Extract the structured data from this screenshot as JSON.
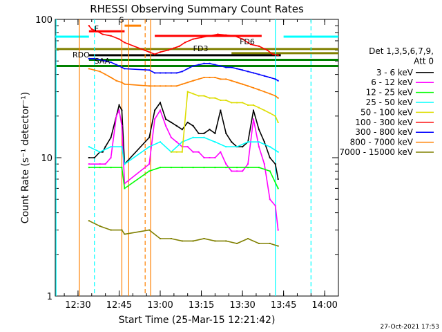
{
  "chart_data": {
    "type": "line",
    "title": "RHESSI Observing Summary Count Rates",
    "xlabel": "Start Time (25-Mar-15 12:21:42)",
    "ylabel": "Count Rate (s⁻¹ detector⁻¹)",
    "yscale": "log",
    "ylim": [
      1,
      100
    ],
    "xlim": [
      "12:21:42",
      "14:05:00"
    ],
    "x_ticks": [
      "12:30",
      "12:45",
      "13:00",
      "13:15",
      "13:30",
      "13:45",
      "14:00"
    ],
    "y_ticks": [
      "1",
      "10",
      "100"
    ],
    "grid": false,
    "legend_position": "right",
    "legend_header": [
      "Det 1,3,5,6,7,9,",
      "Att 0"
    ],
    "series": [
      {
        "name": "3 - 6 keV",
        "color": "#000000",
        "x": [
          "12:34",
          "12:36",
          "12:38",
          "12:39",
          "12:40",
          "12:42",
          "12:44",
          "12:45",
          "12:46",
          "12:47",
          "12:56",
          "12:58",
          "13:00",
          "13:02",
          "13:04",
          "13:06",
          "13:08",
          "13:10",
          "13:12",
          "13:14",
          "13:16",
          "13:18",
          "13:20",
          "13:22",
          "13:24",
          "13:26",
          "13:28",
          "13:30",
          "13:32",
          "13:34",
          "13:36",
          "13:38",
          "13:40",
          "13:42",
          "13:43"
        ],
        "y": [
          10,
          10,
          11,
          11,
          12,
          14,
          20,
          24,
          22,
          9,
          14,
          22,
          25,
          19,
          18,
          17,
          16,
          18,
          17,
          15,
          15,
          16,
          15,
          22,
          15,
          13,
          12,
          12,
          13,
          22,
          16,
          13,
          10,
          9,
          7
        ]
      },
      {
        "name": "6 - 12 keV",
        "color": "#ff00ff",
        "x": [
          "12:34",
          "12:38",
          "12:40",
          "12:42",
          "12:44",
          "12:45",
          "12:46",
          "12:47",
          "12:56",
          "12:58",
          "13:00",
          "13:02",
          "13:04",
          "13:06",
          "13:08",
          "13:10",
          "13:12",
          "13:14",
          "13:16",
          "13:18",
          "13:20",
          "13:22",
          "13:24",
          "13:26",
          "13:28",
          "13:30",
          "13:32",
          "13:34",
          "13:36",
          "13:38",
          "13:40",
          "13:42",
          "13:43"
        ],
        "y": [
          9,
          9,
          9,
          10,
          20,
          22,
          17,
          6.5,
          9,
          19,
          22,
          17,
          14,
          13,
          12,
          12,
          11,
          11,
          10,
          10,
          10,
          11,
          9,
          8,
          8,
          8,
          9,
          19,
          12,
          9,
          5,
          4.5,
          3
        ]
      },
      {
        "name": "12 - 25 keV",
        "color": "#00ff00",
        "x": [
          "12:34",
          "12:38",
          "12:42",
          "12:46",
          "12:47",
          "12:56",
          "13:00",
          "13:04",
          "13:08",
          "13:12",
          "13:16",
          "13:20",
          "13:24",
          "13:28",
          "13:32",
          "13:36",
          "13:40",
          "13:43"
        ],
        "y": [
          8.5,
          8.5,
          8.5,
          8.5,
          6,
          8,
          8.5,
          8.5,
          8.5,
          8.5,
          8.5,
          8.5,
          8.5,
          8.5,
          8.5,
          8.5,
          8,
          6
        ]
      },
      {
        "name": "25 - 50 keV",
        "color": "#00ffff",
        "x": [
          "12:34",
          "12:38",
          "12:42",
          "12:46",
          "12:47",
          "12:56",
          "13:00",
          "13:04",
          "13:08",
          "13:12",
          "13:16",
          "13:20",
          "13:24",
          "13:28",
          "13:32",
          "13:36",
          "13:40",
          "13:43"
        ],
        "y": [
          12,
          11,
          12,
          12,
          9,
          12,
          13,
          11,
          13,
          14,
          14,
          13,
          12,
          12,
          13,
          13,
          12,
          11
        ]
      },
      {
        "name": "50 - 100 keV",
        "color": "#dddd00",
        "x": [
          "13:04",
          "13:06",
          "13:08",
          "13:10",
          "13:12",
          "13:14",
          "13:16",
          "13:18",
          "13:20",
          "13:22",
          "13:24",
          "13:26",
          "13:28",
          "13:30",
          "13:32",
          "13:34",
          "13:36",
          "13:38",
          "13:40",
          "13:42",
          "13:43"
        ],
        "y": [
          11,
          11,
          11,
          30,
          29,
          28,
          28,
          27,
          27,
          26,
          26,
          25,
          25,
          25,
          24,
          24,
          23,
          22,
          21,
          20,
          18
        ]
      },
      {
        "name": "100 - 300 keV",
        "color": "#ff0000",
        "x": [
          "12:34",
          "12:35",
          "12:37",
          "12:39",
          "12:42",
          "12:45",
          "12:47",
          "12:56",
          "12:58",
          "13:00",
          "13:03",
          "13:05",
          "13:07",
          "13:09",
          "13:12",
          "13:15",
          "13:18",
          "13:21",
          "13:24",
          "13:27",
          "13:30",
          "13:33",
          "13:36",
          "13:39",
          "13:41",
          "13:43"
        ],
        "y": [
          90,
          85,
          82,
          78,
          76,
          72,
          68,
          58,
          56,
          58,
          60,
          62,
          64,
          68,
          72,
          74,
          76,
          78,
          77,
          76,
          72,
          66,
          64,
          60,
          56,
          55
        ]
      },
      {
        "name": "300 - 800 keV",
        "color": "#0000ff",
        "x": [
          "12:34",
          "12:36",
          "12:38",
          "12:40",
          "12:42",
          "12:44",
          "12:46",
          "12:47",
          "12:56",
          "12:58",
          "13:00",
          "13:02",
          "13:04",
          "13:06",
          "13:08",
          "13:10",
          "13:12",
          "13:14",
          "13:16",
          "13:18",
          "13:20",
          "13:22",
          "13:24",
          "13:26",
          "13:28",
          "13:30",
          "13:32",
          "13:34",
          "13:36",
          "13:38",
          "13:40",
          "13:42",
          "13:43"
        ],
        "y": [
          52,
          52,
          51,
          50,
          49,
          47,
          45,
          44,
          43,
          41,
          41,
          41,
          41,
          41,
          42,
          44,
          46,
          47,
          48,
          48,
          47,
          46,
          45,
          45,
          44,
          43,
          42,
          41,
          40,
          39,
          38,
          37,
          36
        ]
      },
      {
        "name": "800 - 7000 keV",
        "color": "#ff8000",
        "x": [
          "12:34",
          "12:36",
          "12:38",
          "12:40",
          "12:42",
          "12:44",
          "12:46",
          "12:47",
          "12:56",
          "12:58",
          "13:00",
          "13:02",
          "13:04",
          "13:06",
          "13:08",
          "13:10",
          "13:12",
          "13:14",
          "13:16",
          "13:18",
          "13:20",
          "13:22",
          "13:24",
          "13:26",
          "13:28",
          "13:30",
          "13:32",
          "13:34",
          "13:36",
          "13:38",
          "13:40",
          "13:42",
          "13:43"
        ],
        "y": [
          44,
          43,
          42,
          40,
          38,
          36,
          35,
          34,
          33,
          33,
          33,
          33,
          33,
          33,
          34,
          35,
          36,
          37,
          38,
          38,
          38,
          37,
          37,
          36,
          35,
          34,
          33,
          32,
          31,
          30,
          29,
          28,
          27
        ]
      },
      {
        "name": "7000 - 15000 keV",
        "color": "#808000",
        "x": [
          "12:34",
          "12:38",
          "12:42",
          "12:46",
          "12:47",
          "12:56",
          "13:00",
          "13:04",
          "13:08",
          "13:12",
          "13:16",
          "13:20",
          "13:24",
          "13:28",
          "13:32",
          "13:36",
          "13:40",
          "13:43"
        ],
        "y": [
          3.5,
          3.2,
          3,
          3,
          2.8,
          3,
          2.6,
          2.6,
          2.5,
          2.5,
          2.6,
          2.5,
          2.5,
          2.4,
          2.6,
          2.4,
          2.4,
          2.3
        ]
      }
    ],
    "flag_bars": [
      {
        "label": "S",
        "color": "#ff8000",
        "y": 90,
        "start": "12:47",
        "end": "12:53"
      },
      {
        "label": "F",
        "color": "#ff0000",
        "y": 82,
        "start": "12:34",
        "end": "12:47"
      },
      {
        "label": "",
        "color": "#ff0000",
        "y": 76,
        "start": "12:58",
        "end": "13:37"
      },
      {
        "label": "",
        "color": "#00ffff",
        "y": 75,
        "start": "12:21:42",
        "end": "12:34"
      },
      {
        "label": "",
        "color": "#00ffff",
        "y": 75,
        "start": "13:45",
        "end": "14:05"
      },
      {
        "label": "",
        "color": "#808000",
        "y": 61,
        "start": "12:21:42",
        "end": "14:05"
      },
      {
        "label": "FD3",
        "color": "#808000",
        "y": 57,
        "start": "13:26",
        "end": "14:05"
      },
      {
        "label": "",
        "color": "#000000",
        "y": 55,
        "start": "12:34",
        "end": "13:44"
      },
      {
        "label": "RDO",
        "color": "#008000",
        "y": 51,
        "start": "12:34",
        "end": "14:05"
      },
      {
        "label": "",
        "color": "#008000",
        "y": 46,
        "start": "12:21:42",
        "end": "14:05"
      }
    ],
    "flag_labels": [
      {
        "label": "RDO",
        "color": "#008000",
        "x": "12:28",
        "y": 53
      },
      {
        "label": "SAA",
        "color": "#008000",
        "x": "12:36",
        "y": 48
      },
      {
        "label": "S",
        "color": "#ff8000",
        "x": "12:45",
        "y": 95
      },
      {
        "label": "F",
        "color": "#ff0000",
        "x": "12:36",
        "y": 82
      },
      {
        "label": "FD3",
        "color": "#808000",
        "x": "13:12",
        "y": 59
      },
      {
        "label": "FD6",
        "color": "#808000",
        "x": "13:29",
        "y": 66
      }
    ],
    "vertical_lines": [
      {
        "x": "12:30:30",
        "color": "#ff8000",
        "style": "solid"
      },
      {
        "x": "12:46",
        "color": "#ff8000",
        "style": "solid"
      },
      {
        "x": "12:48:30",
        "color": "#ff8000",
        "style": "solid"
      },
      {
        "x": "12:54:30",
        "color": "#ff8000",
        "style": "dashed"
      },
      {
        "x": "12:56:30",
        "color": "#ff8000",
        "style": "solid"
      },
      {
        "x": "12:36",
        "color": "#00ffff",
        "style": "dashed"
      },
      {
        "x": "12:22",
        "color": "#00ffff",
        "style": "solid"
      },
      {
        "x": "13:42",
        "color": "#00ffff",
        "style": "solid"
      },
      {
        "x": "13:55",
        "color": "#00ffff",
        "style": "dashed"
      }
    ],
    "footer": "27-Oct-2021 17:53"
  }
}
